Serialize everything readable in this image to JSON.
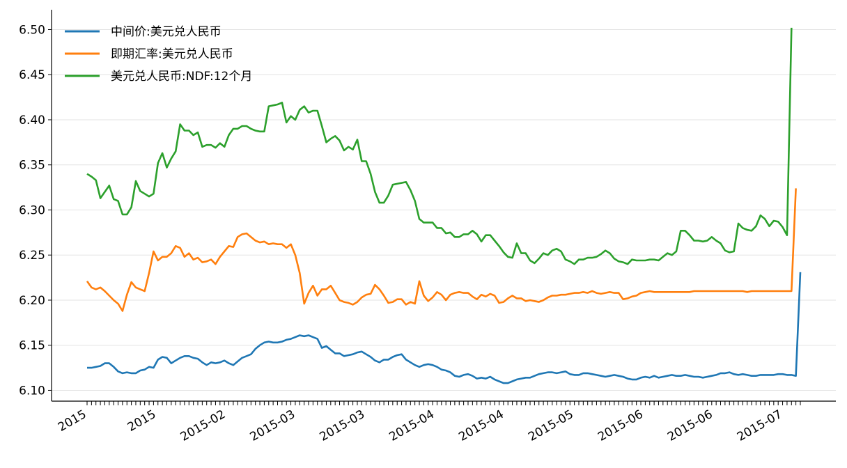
{
  "chart_data": {
    "type": "line",
    "title": "",
    "xlabel": "",
    "ylabel": "",
    "ylim": [
      6.088,
      6.522
    ],
    "yticks": [
      6.1,
      6.15,
      6.2,
      6.25,
      6.3,
      6.35,
      6.4,
      6.45,
      6.5
    ],
    "ytick_labels": [
      "6.10",
      "6.15",
      "6.20",
      "6.25",
      "6.30",
      "6.35",
      "6.40",
      "6.45",
      "6.50"
    ],
    "xtick_labels": [
      "2015",
      "2015",
      "2015-02",
      "2015-03",
      "2015-03",
      "2015-04",
      "2015-04",
      "2015-05",
      "2015-06",
      "2015-06",
      "2015-07"
    ],
    "grid": "horizontal",
    "legend_position": "top-left",
    "series": [
      {
        "name": "中间价:美元兑人民币",
        "color": "#1f77b4",
        "values": [
          6.125,
          6.125,
          6.126,
          6.127,
          6.13,
          6.13,
          6.126,
          6.121,
          6.119,
          6.12,
          6.119,
          6.119,
          6.122,
          6.123,
          6.126,
          6.125,
          6.134,
          6.137,
          6.136,
          6.13,
          6.133,
          6.136,
          6.138,
          6.138,
          6.136,
          6.135,
          6.131,
          6.128,
          6.131,
          6.13,
          6.131,
          6.133,
          6.13,
          6.128,
          6.132,
          6.136,
          6.138,
          6.14,
          6.146,
          6.15,
          6.153,
          6.154,
          6.153,
          6.153,
          6.154,
          6.156,
          6.157,
          6.159,
          6.161,
          6.16,
          6.161,
          6.159,
          6.157,
          6.147,
          6.149,
          6.145,
          6.141,
          6.141,
          6.138,
          6.139,
          6.14,
          6.142,
          6.143,
          6.14,
          6.137,
          6.133,
          6.131,
          6.134,
          6.134,
          6.137,
          6.139,
          6.14,
          6.134,
          6.131,
          6.128,
          6.126,
          6.128,
          6.129,
          6.128,
          6.126,
          6.123,
          6.122,
          6.12,
          6.116,
          6.115,
          6.117,
          6.118,
          6.116,
          6.113,
          6.114,
          6.113,
          6.115,
          6.112,
          6.11,
          6.108,
          6.108,
          6.11,
          6.112,
          6.113,
          6.114,
          6.114,
          6.116,
          6.118,
          6.119,
          6.12,
          6.12,
          6.119,
          6.12,
          6.121,
          6.118,
          6.117,
          6.117,
          6.119,
          6.119,
          6.118,
          6.117,
          6.116,
          6.115,
          6.116,
          6.117,
          6.116,
          6.115,
          6.113,
          6.112,
          6.112,
          6.114,
          6.115,
          6.114,
          6.116,
          6.114,
          6.115,
          6.116,
          6.117,
          6.116,
          6.116,
          6.117,
          6.116,
          6.115,
          6.115,
          6.114,
          6.115,
          6.116,
          6.117,
          6.119,
          6.119,
          6.12,
          6.118,
          6.117,
          6.118,
          6.117,
          6.116,
          6.116,
          6.117,
          6.117,
          6.117,
          6.117,
          6.118,
          6.118,
          6.117,
          6.117,
          6.116,
          6.231
        ]
      },
      {
        "name": "即期汇率:美元兑人民币",
        "color": "#ff7f0e",
        "values": [
          6.221,
          6.214,
          6.212,
          6.214,
          6.21,
          6.205,
          6.2,
          6.196,
          6.188,
          6.206,
          6.22,
          6.214,
          6.212,
          6.21,
          6.23,
          6.254,
          6.244,
          6.248,
          6.248,
          6.252,
          6.26,
          6.258,
          6.248,
          6.252,
          6.245,
          6.247,
          6.242,
          6.243,
          6.245,
          6.24,
          6.248,
          6.254,
          6.26,
          6.259,
          6.27,
          6.273,
          6.274,
          6.27,
          6.266,
          6.264,
          6.265,
          6.262,
          6.263,
          6.262,
          6.262,
          6.258,
          6.262,
          6.25,
          6.23,
          6.196,
          6.208,
          6.216,
          6.205,
          6.212,
          6.212,
          6.216,
          6.208,
          6.2,
          6.198,
          6.197,
          6.195,
          6.198,
          6.203,
          6.206,
          6.207,
          6.217,
          6.212,
          6.205,
          6.197,
          6.198,
          6.201,
          6.201,
          6.195,
          6.198,
          6.196,
          6.221,
          6.205,
          6.199,
          6.203,
          6.209,
          6.206,
          6.2,
          6.206,
          6.208,
          6.209,
          6.208,
          6.208,
          6.204,
          6.201,
          6.206,
          6.204,
          6.207,
          6.205,
          6.197,
          6.198,
          6.202,
          6.205,
          6.202,
          6.202,
          6.199,
          6.2,
          6.199,
          6.198,
          6.2,
          6.203,
          6.205,
          6.205,
          6.206,
          6.206,
          6.207,
          6.208,
          6.208,
          6.209,
          6.208,
          6.21,
          6.208,
          6.207,
          6.208,
          6.209,
          6.208,
          6.208,
          6.201,
          6.202,
          6.204,
          6.205,
          6.208,
          6.209,
          6.21,
          6.209,
          6.209,
          6.209,
          6.209,
          6.209,
          6.209,
          6.209,
          6.209,
          6.209,
          6.21,
          6.21,
          6.21,
          6.21,
          6.21,
          6.21,
          6.21,
          6.21,
          6.21,
          6.21,
          6.21,
          6.21,
          6.209,
          6.21,
          6.21,
          6.21,
          6.21,
          6.21,
          6.21,
          6.21,
          6.21,
          6.21,
          6.21,
          6.324
        ]
      },
      {
        "name": "美元兑人民币:NDF:12个月",
        "color": "#2ca02c",
        "values": [
          6.34,
          6.337,
          6.333,
          6.313,
          6.32,
          6.327,
          6.312,
          6.31,
          6.295,
          6.295,
          6.303,
          6.332,
          6.321,
          6.318,
          6.315,
          6.318,
          6.352,
          6.363,
          6.347,
          6.357,
          6.365,
          6.395,
          6.388,
          6.388,
          6.383,
          6.386,
          6.37,
          6.372,
          6.372,
          6.369,
          6.374,
          6.37,
          6.383,
          6.39,
          6.39,
          6.393,
          6.393,
          6.39,
          6.388,
          6.387,
          6.387,
          6.415,
          6.416,
          6.417,
          6.419,
          6.397,
          6.404,
          6.4,
          6.411,
          6.415,
          6.408,
          6.41,
          6.41,
          6.393,
          6.375,
          6.379,
          6.382,
          6.377,
          6.366,
          6.37,
          6.367,
          6.378,
          6.354,
          6.354,
          6.34,
          6.32,
          6.308,
          6.308,
          6.316,
          6.328,
          6.329,
          6.33,
          6.331,
          6.322,
          6.31,
          6.29,
          6.286,
          6.286,
          6.286,
          6.28,
          6.28,
          6.274,
          6.275,
          6.27,
          6.27,
          6.273,
          6.273,
          6.277,
          6.273,
          6.265,
          6.272,
          6.272,
          6.266,
          6.26,
          6.253,
          6.248,
          6.247,
          6.263,
          6.252,
          6.252,
          6.244,
          6.241,
          6.246,
          6.252,
          6.25,
          6.255,
          6.257,
          6.254,
          6.245,
          6.243,
          6.24,
          6.245,
          6.245,
          6.247,
          6.247,
          6.248,
          6.251,
          6.255,
          6.252,
          6.246,
          6.243,
          6.242,
          6.24,
          6.245,
          6.244,
          6.244,
          6.244,
          6.245,
          6.245,
          6.244,
          6.248,
          6.252,
          6.25,
          6.254,
          6.277,
          6.277,
          6.272,
          6.266,
          6.266,
          6.265,
          6.266,
          6.27,
          6.266,
          6.263,
          6.255,
          6.253,
          6.254,
          6.285,
          6.28,
          6.278,
          6.277,
          6.282,
          6.294,
          6.29,
          6.282,
          6.288,
          6.287,
          6.281,
          6.272,
          6.502
        ]
      }
    ]
  }
}
